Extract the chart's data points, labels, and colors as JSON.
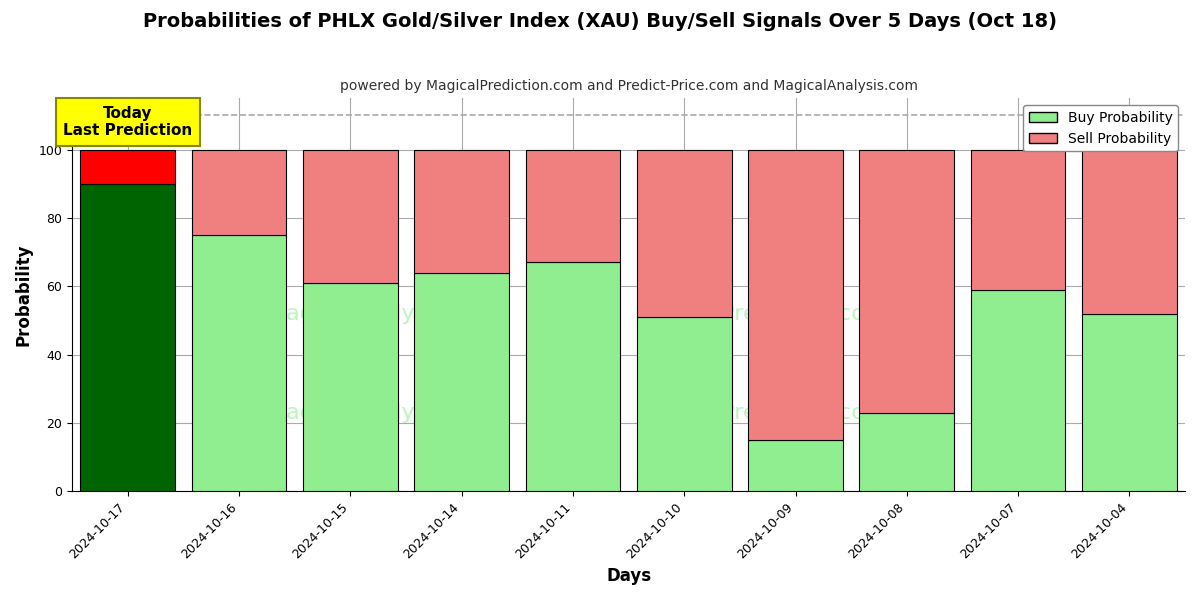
{
  "title": "Probabilities of PHLX Gold/Silver Index (XAU) Buy/Sell Signals Over 5 Days (Oct 18)",
  "subtitle": "powered by MagicalPrediction.com and Predict-Price.com and MagicalAnalysis.com",
  "xlabel": "Days",
  "ylabel": "Probability",
  "categories": [
    "2024-10-17",
    "2024-10-16",
    "2024-10-15",
    "2024-10-14",
    "2024-10-11",
    "2024-10-10",
    "2024-10-09",
    "2024-10-08",
    "2024-10-07",
    "2024-10-04"
  ],
  "buy_values": [
    90,
    75,
    61,
    64,
    67,
    51,
    15,
    23,
    59,
    52
  ],
  "sell_values": [
    10,
    25,
    39,
    36,
    33,
    49,
    85,
    77,
    41,
    48
  ],
  "today_buy_color": "#006400",
  "today_sell_color": "#FF0000",
  "buy_color": "#90EE90",
  "sell_color": "#F08080",
  "bar_edge_color": "#000000",
  "ylim": [
    0,
    115
  ],
  "yticks": [
    0,
    20,
    40,
    60,
    80,
    100
  ],
  "dashed_line_y": 110,
  "legend_buy_label": "Buy Probability",
  "legend_sell_label": "Sell Probability",
  "annotation_text": "Today\nLast Prediction",
  "background_color": "#ffffff",
  "plot_bg_color": "#ffffff",
  "grid_color": "#aaaaaa",
  "title_fontsize": 14,
  "subtitle_fontsize": 10,
  "axis_label_fontsize": 12,
  "tick_fontsize": 9,
  "bar_width": 0.85
}
